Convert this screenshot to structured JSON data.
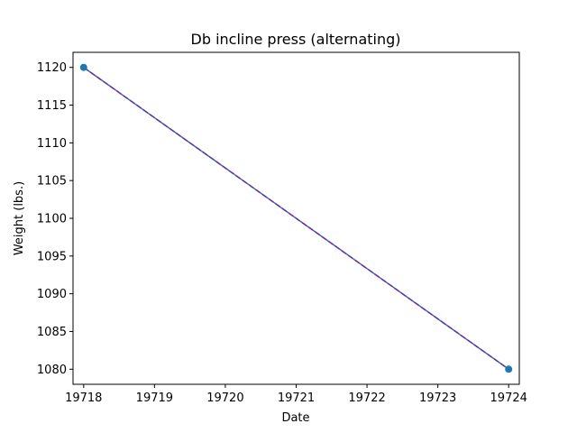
{
  "chart_data": {
    "type": "line",
    "title": "Db incline press (alternating)",
    "xlabel": "Date",
    "ylabel": "Weight (lbs.)",
    "x": [
      19718,
      19724
    ],
    "series": [
      {
        "values": [
          1120,
          1080
        ],
        "marker_color": "#1f77b4"
      }
    ],
    "trend_line": {
      "x": [
        19718,
        19724
      ],
      "values": [
        1120,
        1080
      ],
      "color": "#7b2a9b",
      "style": "dashed"
    },
    "xlim": [
      19717.85,
      19724.15
    ],
    "ylim": [
      1078,
      1122
    ],
    "xticks": [
      19718,
      19719,
      19720,
      19721,
      19722,
      19723,
      19724
    ],
    "yticks": [
      1080,
      1085,
      1090,
      1095,
      1100,
      1105,
      1110,
      1115,
      1120
    ],
    "grid": false,
    "legend": "none"
  }
}
